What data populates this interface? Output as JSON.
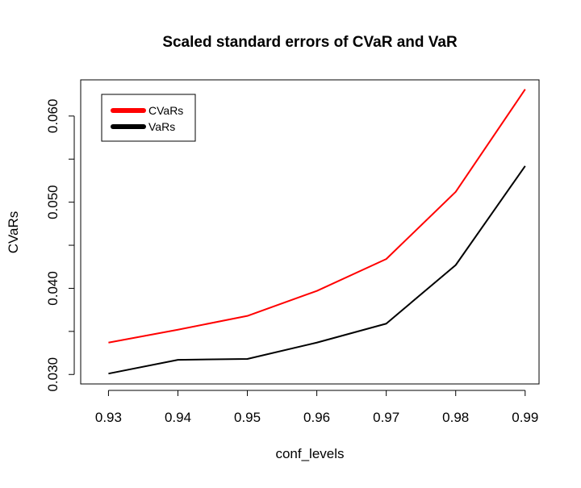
{
  "chart_data": {
    "type": "line",
    "title": "Scaled standard errors of CVaR and VaR",
    "xlabel": "conf_levels",
    "ylabel": "CVaRs",
    "x": [
      0.93,
      0.94,
      0.95,
      0.96,
      0.97,
      0.98,
      0.99
    ],
    "x_tick_labels": [
      "0.93",
      "0.94",
      "0.95",
      "0.96",
      "0.97",
      "0.98",
      "0.99"
    ],
    "y_ticks": [
      0.03,
      0.035,
      0.04,
      0.045,
      0.05,
      0.055,
      0.06
    ],
    "y_tick_labels": [
      "0.030",
      "",
      "0.040",
      "",
      "0.050",
      "",
      "0.060"
    ],
    "xlim": [
      0.926,
      0.992
    ],
    "ylim": [
      0.0289,
      0.0642
    ],
    "grid": false,
    "legend_position": "top-left",
    "series": [
      {
        "name": "CVaRs",
        "color": "#ff0000",
        "values": [
          0.0337,
          0.0352,
          0.0368,
          0.0397,
          0.0434,
          0.0512,
          0.0631
        ]
      },
      {
        "name": "VaRs",
        "color": "#000000",
        "values": [
          0.0301,
          0.0317,
          0.0318,
          0.0337,
          0.0359,
          0.0427,
          0.0542
        ]
      }
    ]
  }
}
